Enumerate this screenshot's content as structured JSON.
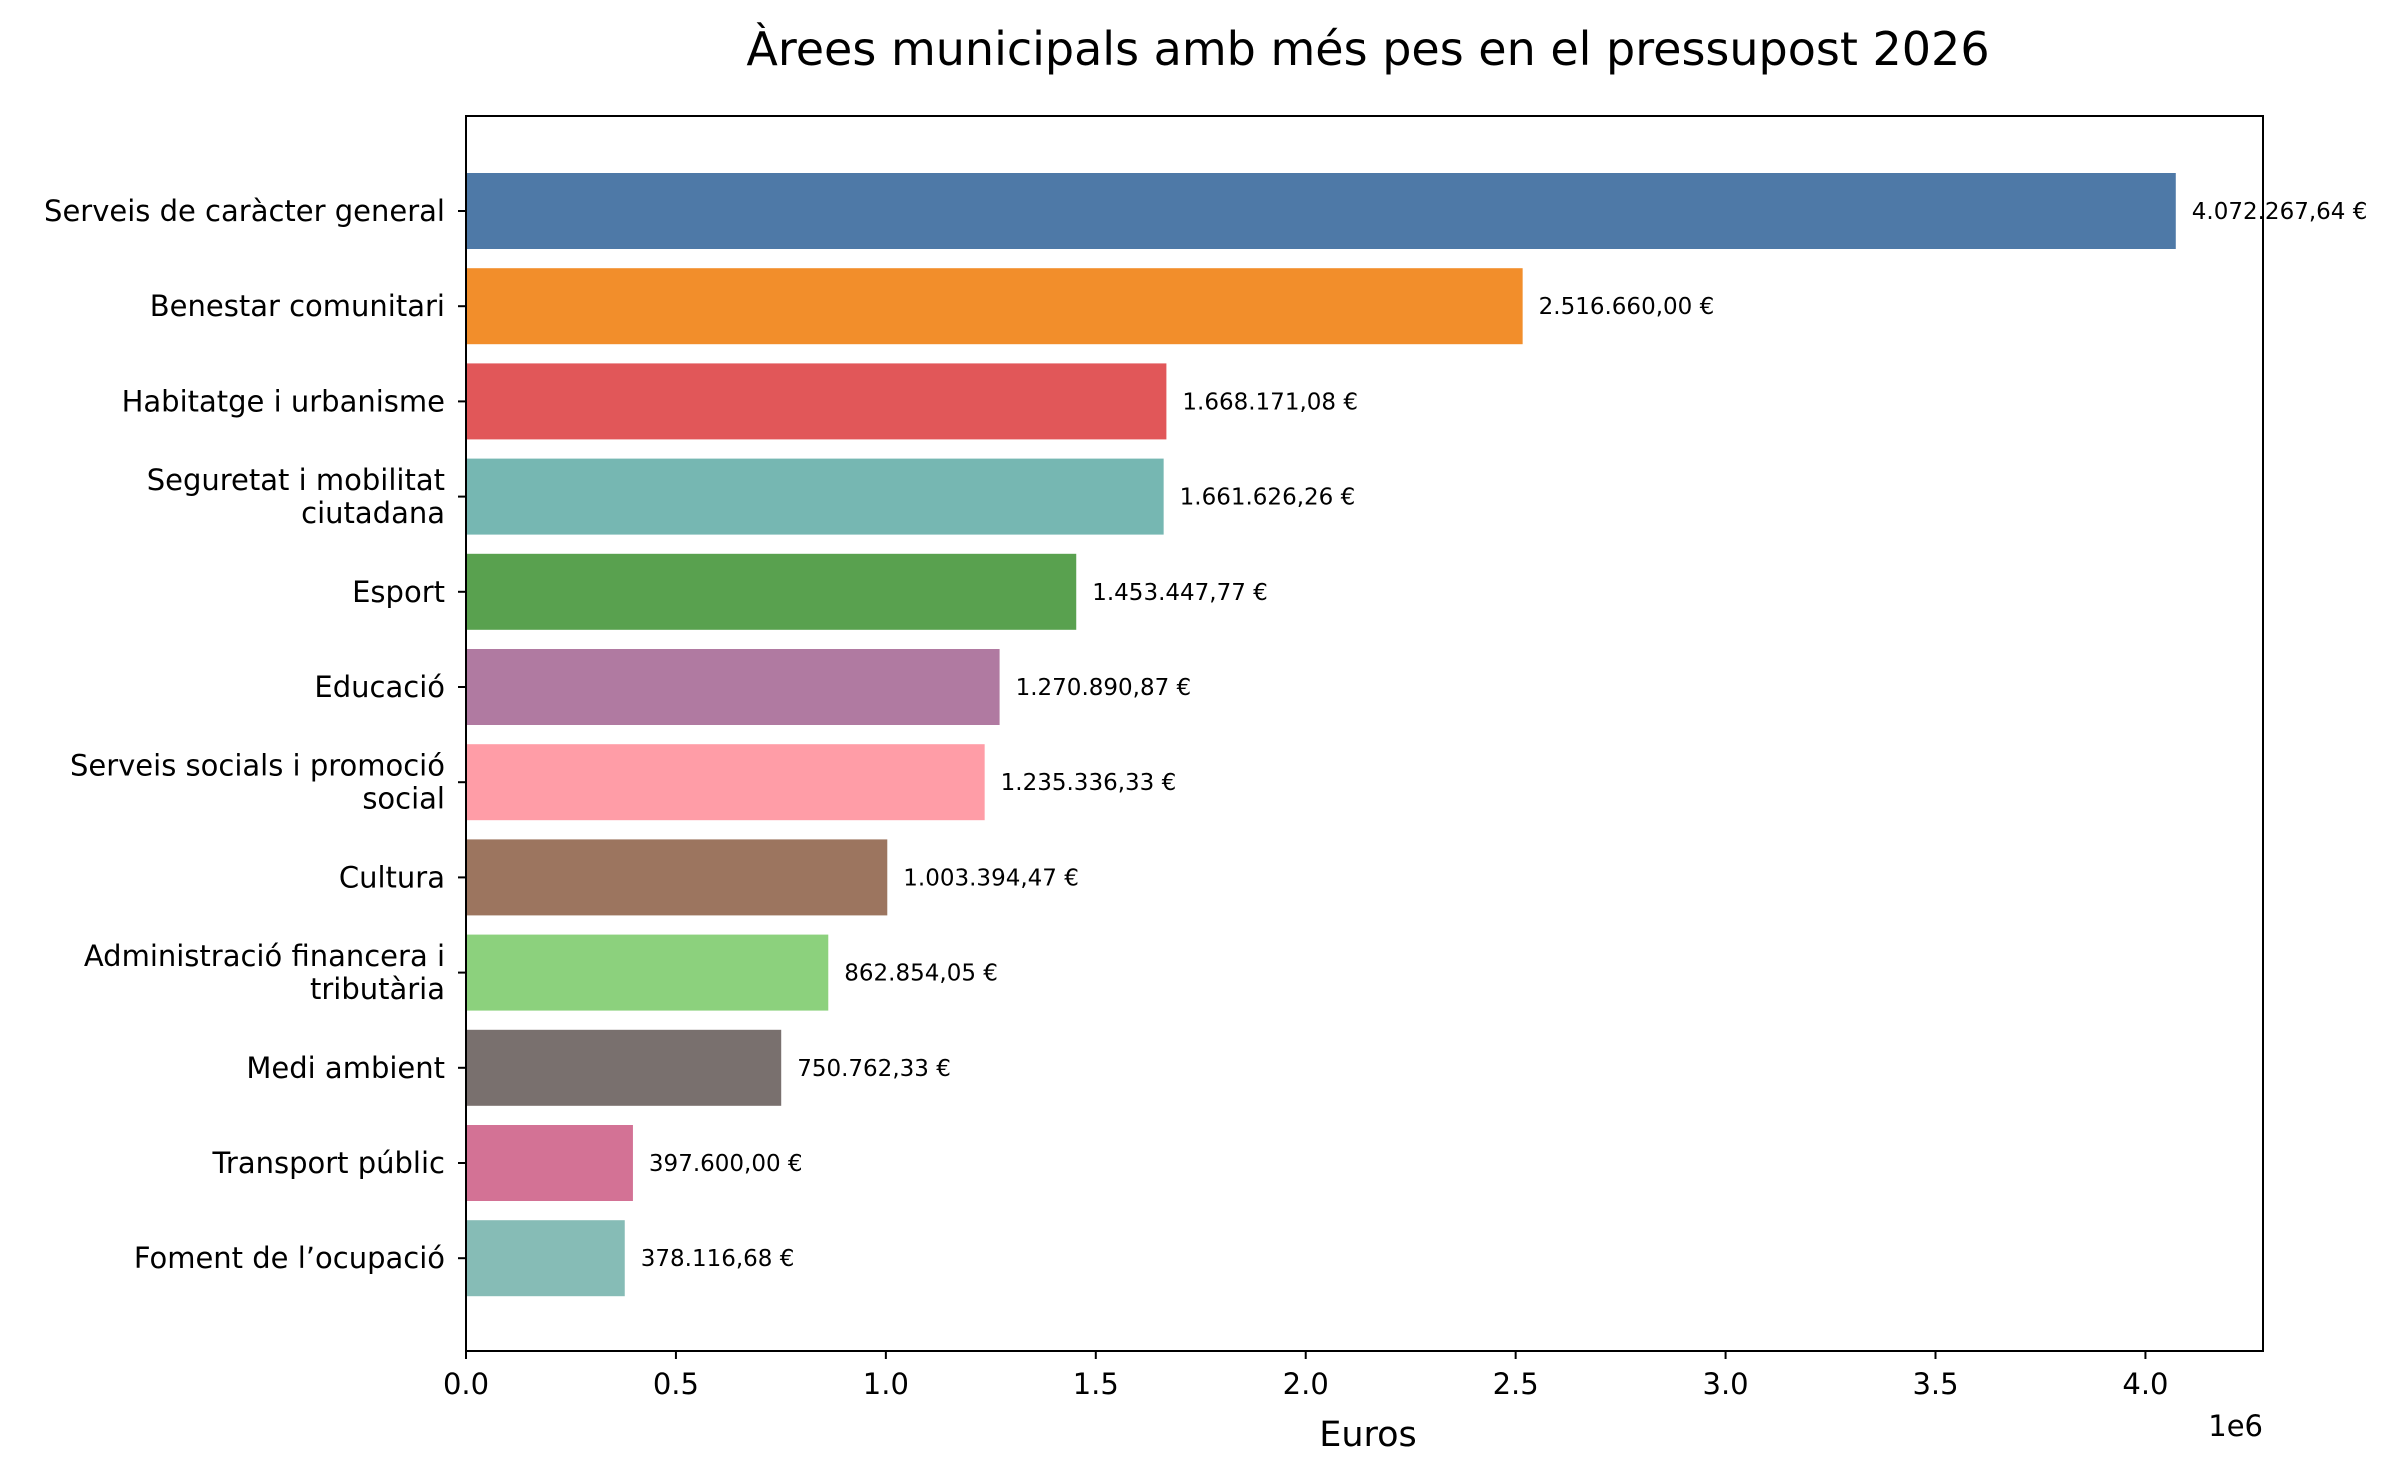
{
  "chart_data": {
    "type": "bar",
    "orientation": "horizontal",
    "title": "Àrees municipals amb més pes en el pressupost 2026",
    "xlabel": "Euros",
    "ylabel": "",
    "x_offset_label": "1e6",
    "xlim": [
      0,
      4280000
    ],
    "x_ticks": [
      {
        "value": 0,
        "label": "0.0"
      },
      {
        "value": 500000,
        "label": "0.5"
      },
      {
        "value": 1000000,
        "label": "1.0"
      },
      {
        "value": 1500000,
        "label": "1.5"
      },
      {
        "value": 2000000,
        "label": "2.0"
      },
      {
        "value": 2500000,
        "label": "2.5"
      },
      {
        "value": 3000000,
        "label": "3.0"
      },
      {
        "value": 3500000,
        "label": "3.5"
      },
      {
        "value": 4000000,
        "label": "4.0"
      }
    ],
    "grid": false,
    "legend": "none",
    "categories": [
      [
        "Serveis de caràcter general"
      ],
      [
        "Benestar comunitari"
      ],
      [
        "Habitatge i urbanisme"
      ],
      [
        "Seguretat i mobilitat",
        "ciutadana"
      ],
      [
        "Esport"
      ],
      [
        "Educació"
      ],
      [
        "Serveis socials i promoció",
        "social"
      ],
      [
        "Cultura"
      ],
      [
        "Administració financera i",
        "tributària"
      ],
      [
        "Medi ambient"
      ],
      [
        "Transport públic"
      ],
      [
        "Foment de l’ocupació"
      ]
    ],
    "values": [
      4072267.64,
      2516660.0,
      1668171.08,
      1661626.26,
      1453447.77,
      1270890.87,
      1235336.33,
      1003394.47,
      862854.05,
      750762.33,
      397600.0,
      378116.68
    ],
    "value_labels": [
      "4.072.267,64 €",
      "2.516.660,00 €",
      "1.668.171,08 €",
      "1.661.626,26 €",
      "1.453.447,77 €",
      "1.270.890,87 €",
      "1.235.336,33 €",
      "1.003.394,47 €",
      "862.854,05 €",
      "750.762,33 €",
      "397.600,00 €",
      "378.116,68 €"
    ],
    "colors": [
      "#4e79a7",
      "#f28e2b",
      "#e15759",
      "#76b7b2",
      "#59a14f",
      "#b07aa1",
      "#ff9da7",
      "#9c755f",
      "#8cd17d",
      "#79706e",
      "#d37295",
      "#86bcb6"
    ]
  }
}
